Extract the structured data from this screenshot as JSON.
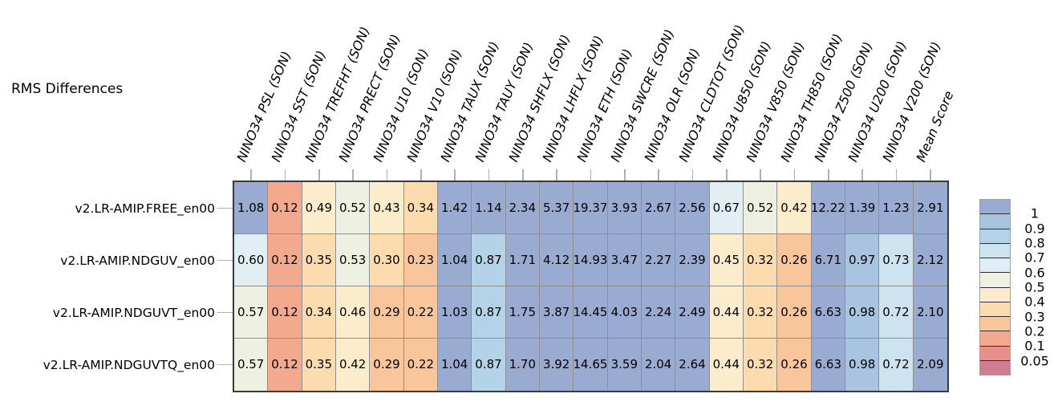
{
  "chart_data": {
    "type": "heatmap",
    "title": "RMS Differences",
    "legend_position": "right",
    "columns": [
      "NINO34 PSL (SON)",
      "NINO34 SST (SON)",
      "NINO34 TREFHT (SON)",
      "NINO34 PRECT (SON)",
      "NINO34 U10 (SON)",
      "NINO34 V10 (SON)",
      "NINO34 TAUX (SON)",
      "NINO34 TAUY (SON)",
      "NINO34 SHFLX (SON)",
      "NINO34 LHFLX (SON)",
      "NINO34 ETH (SON)",
      "NINO34 SWCRE (SON)",
      "NINO34 OLR (SON)",
      "NINO34 CLDTOT (SON)",
      "NINO34 U850 (SON)",
      "NINO34 V850 (SON)",
      "NINO34 TH850 (SON)",
      "NINO34 Z500 (SON)",
      "NINO34 U200 (SON)",
      "NINO34 V200 (SON)",
      "Mean Score"
    ],
    "rows": [
      "v2.LR-AMIP.FREE_en00",
      "v2.LR-AMIP.NDGUV_en00",
      "v2.LR-AMIP.NDGUVT_en00",
      "v2.LR-AMIP.NDGUVTQ_en00"
    ],
    "values": [
      [
        "1.08",
        "0.12",
        "0.49",
        "0.52",
        "0.43",
        "0.34",
        "1.42",
        "1.14",
        "2.34",
        "5.37",
        "19.37",
        "3.93",
        "2.67",
        "2.56",
        "0.67",
        "0.52",
        "0.42",
        "12.22",
        "1.39",
        "1.23",
        "2.91"
      ],
      [
        "0.60",
        "0.12",
        "0.35",
        "0.53",
        "0.30",
        "0.23",
        "1.04",
        "0.87",
        "1.71",
        "4.12",
        "14.93",
        "3.47",
        "2.27",
        "2.39",
        "0.45",
        "0.32",
        "0.26",
        "6.71",
        "0.97",
        "0.73",
        "2.12"
      ],
      [
        "0.57",
        "0.12",
        "0.34",
        "0.46",
        "0.29",
        "0.22",
        "1.03",
        "0.87",
        "1.75",
        "3.87",
        "14.45",
        "4.03",
        "2.24",
        "2.49",
        "0.44",
        "0.32",
        "0.26",
        "6.63",
        "0.98",
        "0.72",
        "2.10"
      ],
      [
        "0.57",
        "0.12",
        "0.35",
        "0.42",
        "0.29",
        "0.22",
        "1.04",
        "0.87",
        "1.70",
        "3.92",
        "14.65",
        "3.59",
        "2.04",
        "2.64",
        "0.44",
        "0.32",
        "0.26",
        "6.63",
        "0.98",
        "0.72",
        "2.09"
      ]
    ],
    "colorbar": {
      "tick_labels": [
        "1",
        "0.9",
        "0.8",
        "0.7",
        "0.6",
        "0.5",
        "0.4",
        "0.3",
        "0.2",
        "0.1",
        "0.05"
      ],
      "thresholds": [
        1,
        0.9,
        0.8,
        0.7,
        0.6,
        0.5,
        0.4,
        0.3,
        0.2,
        0.1,
        0.05
      ],
      "colors": [
        "#9aabd2",
        "#a9c4df",
        "#b4d3e8",
        "#cde3ef",
        "#e1eff4",
        "#eef0e1",
        "#fbeccb",
        "#fcdcaf",
        "#f9c69c",
        "#f3a98d",
        "#e88f90",
        "#d07d92"
      ]
    }
  }
}
